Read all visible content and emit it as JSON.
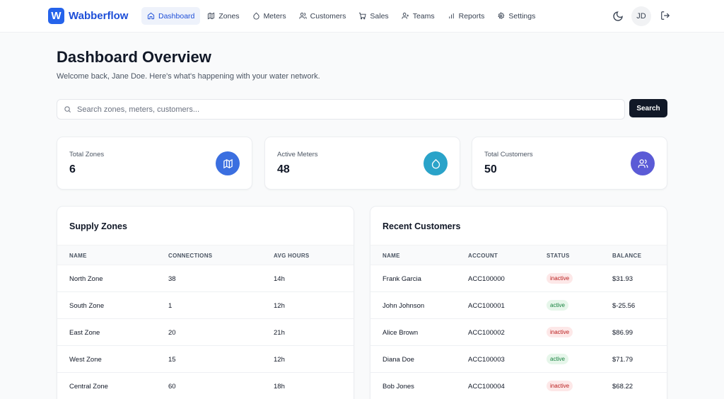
{
  "app": {
    "name": "Wabberflow",
    "logo_letter": "W"
  },
  "nav": {
    "items": [
      {
        "label": "Dashboard",
        "icon": "home-icon",
        "active": true
      },
      {
        "label": "Zones",
        "icon": "map-icon"
      },
      {
        "label": "Meters",
        "icon": "droplet-icon"
      },
      {
        "label": "Customers",
        "icon": "users-icon"
      },
      {
        "label": "Sales",
        "icon": "cart-icon"
      },
      {
        "label": "Teams",
        "icon": "team-icon"
      },
      {
        "label": "Reports",
        "icon": "bar-chart-icon"
      },
      {
        "label": "Settings",
        "icon": "gear-icon"
      }
    ],
    "user_initials": "JD"
  },
  "header": {
    "title": "Dashboard Overview",
    "subtitle": "Welcome back, Jane Doe. Here's what's happening with your water network."
  },
  "search": {
    "placeholder": "Search zones, meters, customers...",
    "value": "",
    "button_label": "Search"
  },
  "stats": [
    {
      "label": "Total Zones",
      "value": "6",
      "icon": "map-icon",
      "color": "#3b6fe0"
    },
    {
      "label": "Active Meters",
      "value": "48",
      "icon": "droplet-icon",
      "color": "#2aa3c9"
    },
    {
      "label": "Total Customers",
      "value": "50",
      "icon": "users-icon",
      "color": "#5b5bd6"
    }
  ],
  "supply_zones": {
    "title": "Supply Zones",
    "columns": [
      "NAME",
      "CONNECTIONS",
      "AVG HOURS"
    ],
    "rows": [
      [
        "North Zone",
        "38",
        "14h"
      ],
      [
        "South Zone",
        "1",
        "12h"
      ],
      [
        "East Zone",
        "20",
        "21h"
      ],
      [
        "West Zone",
        "15",
        "12h"
      ],
      [
        "Central Zone",
        "60",
        "18h"
      ]
    ]
  },
  "recent_customers": {
    "title": "Recent Customers",
    "columns": [
      "NAME",
      "ACCOUNT",
      "STATUS",
      "BALANCE"
    ],
    "rows": [
      [
        "Frank Garcia",
        "ACC100000",
        "inactive",
        "$31.93"
      ],
      [
        "John Johnson",
        "ACC100001",
        "active",
        "$-25.56"
      ],
      [
        "Alice Brown",
        "ACC100002",
        "inactive",
        "$86.99"
      ],
      [
        "Diana Doe",
        "ACC100003",
        "active",
        "$71.79"
      ],
      [
        "Bob Jones",
        "ACC100004",
        "inactive",
        "$68.22"
      ]
    ]
  },
  "colors": {
    "brand": "#2563eb",
    "active_badge": "#15803d",
    "inactive_badge": "#b91c1c"
  }
}
